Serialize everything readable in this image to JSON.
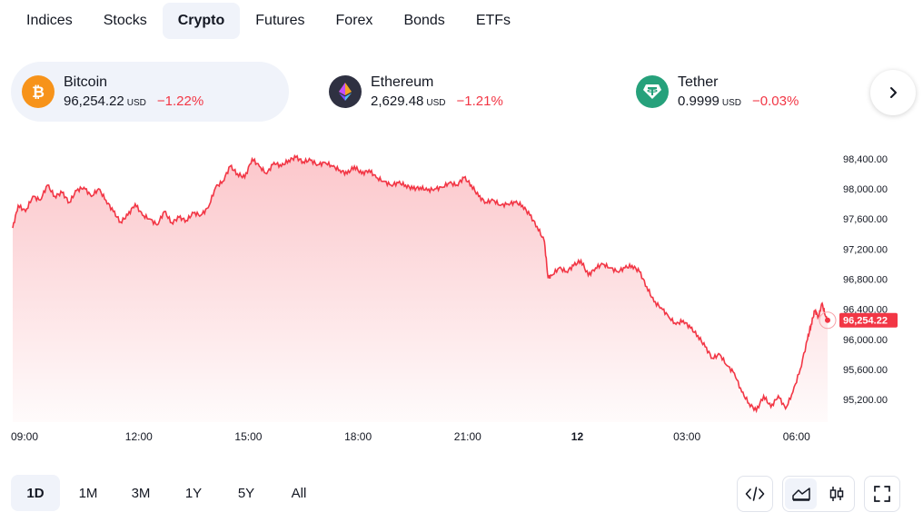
{
  "tabs": [
    "Indices",
    "Stocks",
    "Crypto",
    "Futures",
    "Forex",
    "Bonds",
    "ETFs"
  ],
  "active_tab": "Crypto",
  "tickers": [
    {
      "name": "Bitcoin",
      "price": "96,254.22",
      "currency": "USD",
      "change": "−1.22%",
      "icon": "bitcoin-icon"
    },
    {
      "name": "Ethereum",
      "price": "2,629.48",
      "currency": "USD",
      "change": "−1.21%",
      "icon": "ethereum-icon"
    },
    {
      "name": "Tether",
      "price": "0.9999",
      "currency": "USD",
      "change": "−0.03%",
      "icon": "tether-icon"
    }
  ],
  "colors": {
    "accent": "#f23645",
    "negative": "#f23645",
    "bitcoin": "#f7931a",
    "ethereum": "#2f3142",
    "tether": "#26a17b"
  },
  "chart_data": {
    "type": "area",
    "series_name": "Bitcoin",
    "ylim": [
      94900,
      98700
    ],
    "y_ticks": [
      98400,
      98000,
      97600,
      97200,
      96800,
      96400,
      96000,
      95600,
      95200
    ],
    "y_tick_labels": [
      "98,400.00",
      "98,000.00",
      "97,600.00",
      "97,200.00",
      "96,800.00",
      "96,400.00",
      "96,000.00",
      "95,600.00",
      "95,200.00"
    ],
    "x_tick_labels": [
      "09:00",
      "12:00",
      "15:00",
      "18:00",
      "21:00",
      "12",
      "03:00",
      "06:00"
    ],
    "x_tick_hours": [
      9,
      12,
      15,
      18,
      21,
      24,
      27,
      30
    ],
    "x_range_hours": [
      8.5,
      30.9
    ],
    "last_price_label": "96,254.22",
    "last_value": 96254.22,
    "points": [
      [
        8.55,
        97480
      ],
      [
        8.7,
        97780
      ],
      [
        8.9,
        97700
      ],
      [
        9.1,
        97900
      ],
      [
        9.3,
        97850
      ],
      [
        9.5,
        98050
      ],
      [
        9.7,
        97900
      ],
      [
        9.9,
        97950
      ],
      [
        10.1,
        97820
      ],
      [
        10.3,
        97980
      ],
      [
        10.5,
        98020
      ],
      [
        10.7,
        97900
      ],
      [
        10.9,
        98000
      ],
      [
        11.1,
        97850
      ],
      [
        11.3,
        97700
      ],
      [
        11.5,
        97560
      ],
      [
        11.7,
        97650
      ],
      [
        11.9,
        97800
      ],
      [
        12.1,
        97650
      ],
      [
        12.3,
        97600
      ],
      [
        12.5,
        97520
      ],
      [
        12.7,
        97700
      ],
      [
        12.9,
        97550
      ],
      [
        13.1,
        97620
      ],
      [
        13.3,
        97580
      ],
      [
        13.5,
        97680
      ],
      [
        13.7,
        97650
      ],
      [
        13.9,
        97750
      ],
      [
        14.1,
        98020
      ],
      [
        14.3,
        98100
      ],
      [
        14.5,
        98300
      ],
      [
        14.7,
        98200
      ],
      [
        14.9,
        98150
      ],
      [
        15.1,
        98400
      ],
      [
        15.3,
        98300
      ],
      [
        15.5,
        98200
      ],
      [
        15.7,
        98350
      ],
      [
        15.9,
        98300
      ],
      [
        16.1,
        98380
      ],
      [
        16.3,
        98420
      ],
      [
        16.5,
        98360
      ],
      [
        16.7,
        98380
      ],
      [
        16.9,
        98320
      ],
      [
        17.1,
        98350
      ],
      [
        17.3,
        98300
      ],
      [
        17.5,
        98250
      ],
      [
        17.7,
        98200
      ],
      [
        17.9,
        98300
      ],
      [
        18.1,
        98200
      ],
      [
        18.3,
        98250
      ],
      [
        18.5,
        98150
      ],
      [
        18.7,
        98100
      ],
      [
        18.9,
        98050
      ],
      [
        19.1,
        98080
      ],
      [
        19.3,
        98050
      ],
      [
        19.5,
        98000
      ],
      [
        19.7,
        98020
      ],
      [
        19.9,
        97980
      ],
      [
        20.1,
        98000
      ],
      [
        20.3,
        98020
      ],
      [
        20.5,
        98080
      ],
      [
        20.7,
        98050
      ],
      [
        20.9,
        98150
      ],
      [
        21.1,
        98050
      ],
      [
        21.3,
        97900
      ],
      [
        21.5,
        97820
      ],
      [
        21.7,
        97850
      ],
      [
        21.9,
        97780
      ],
      [
        22.1,
        97800
      ],
      [
        22.3,
        97820
      ],
      [
        22.5,
        97780
      ],
      [
        22.7,
        97650
      ],
      [
        22.9,
        97500
      ],
      [
        23.1,
        97300
      ],
      [
        23.2,
        96820
      ],
      [
        23.3,
        96850
      ],
      [
        23.5,
        96950
      ],
      [
        23.7,
        96900
      ],
      [
        23.9,
        96980
      ],
      [
        24.1,
        97050
      ],
      [
        24.3,
        96850
      ],
      [
        24.5,
        96950
      ],
      [
        24.7,
        97000
      ],
      [
        24.9,
        96950
      ],
      [
        25.1,
        96900
      ],
      [
        25.3,
        96950
      ],
      [
        25.5,
        96980
      ],
      [
        25.7,
        96900
      ],
      [
        25.9,
        96700
      ],
      [
        26.1,
        96500
      ],
      [
        26.3,
        96420
      ],
      [
        26.5,
        96300
      ],
      [
        26.7,
        96200
      ],
      [
        26.9,
        96250
      ],
      [
        27.1,
        96150
      ],
      [
        27.3,
        96050
      ],
      [
        27.5,
        95900
      ],
      [
        27.7,
        95750
      ],
      [
        27.9,
        95800
      ],
      [
        28.1,
        95650
      ],
      [
        28.3,
        95550
      ],
      [
        28.5,
        95300
      ],
      [
        28.7,
        95150
      ],
      [
        28.9,
        95050
      ],
      [
        29.1,
        95250
      ],
      [
        29.3,
        95100
      ],
      [
        29.5,
        95250
      ],
      [
        29.7,
        95080
      ],
      [
        29.9,
        95300
      ],
      [
        30.1,
        95600
      ],
      [
        30.3,
        96000
      ],
      [
        30.4,
        96200
      ],
      [
        30.5,
        96380
      ],
      [
        30.6,
        96300
      ],
      [
        30.7,
        96480
      ],
      [
        30.8,
        96300
      ],
      [
        30.85,
        96254.22
      ]
    ]
  },
  "ranges": [
    "1D",
    "1M",
    "3M",
    "1Y",
    "5Y",
    "All"
  ],
  "active_range": "1D",
  "tools": {
    "embed": "code-icon",
    "area_chart": "area-chart-icon",
    "candles": "candlestick-icon",
    "fullscreen": "fullscreen-icon"
  }
}
